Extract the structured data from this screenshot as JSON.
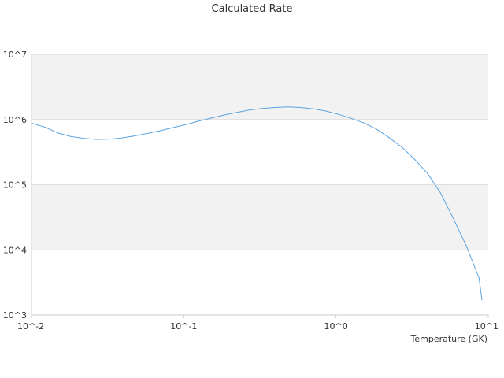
{
  "chart_data": {
    "type": "line",
    "title": "Calculated Rate",
    "xlabel": "Temperature (GK)",
    "ylabel": "",
    "x_scale": "log",
    "y_scale": "log",
    "xlim": [
      0.01,
      10
    ],
    "ylim": [
      1000,
      10000000
    ],
    "x_ticks": [
      {
        "value": 0.01,
        "label": "10^-2"
      },
      {
        "value": 0.1,
        "label": "10^-1"
      },
      {
        "value": 1,
        "label": "10^0"
      },
      {
        "value": 10,
        "label": "10^1"
      }
    ],
    "y_ticks": [
      {
        "value": 1000,
        "label": "10^3"
      },
      {
        "value": 10000,
        "label": "10^4"
      },
      {
        "value": 100000,
        "label": "10^5"
      },
      {
        "value": 1000000,
        "label": "10^6"
      },
      {
        "value": 10000000,
        "label": "10^7"
      }
    ],
    "grid": "horizontal bands",
    "legend": "none",
    "colors": {
      "line": "#5ba3e0",
      "band": "#f2f2f2",
      "grid": "#dddddd"
    },
    "series": [
      {
        "x": [
          0.01,
          0.0123,
          0.0149,
          0.018,
          0.0219,
          0.0265,
          0.0321,
          0.039,
          0.0473,
          0.0575,
          0.0696,
          0.0845,
          0.1025,
          0.124,
          0.151,
          0.183,
          0.222,
          0.269,
          0.327,
          0.396,
          0.48,
          0.582,
          0.706,
          0.857,
          1.04,
          1.26,
          1.53,
          1.85,
          2.25,
          2.73,
          3.31,
          4.02,
          4.87,
          5.91,
          7.17,
          8.7,
          10.0
        ],
        "y": [
          880000,
          760000,
          620000,
          550000,
          515000,
          495000,
          498000,
          520000,
          560000,
          610000,
          670000,
          750000,
          830000,
          940000,
          1050000,
          1170000,
          1280000,
          1400000,
          1480000,
          1530000,
          1560000,
          1530000,
          1460000,
          1350000,
          1200000,
          1040000,
          880000,
          710000,
          520000,
          370000,
          240000,
          145000,
          74000,
          30000,
          11500,
          3700,
          1700
        ]
      }
    ]
  }
}
